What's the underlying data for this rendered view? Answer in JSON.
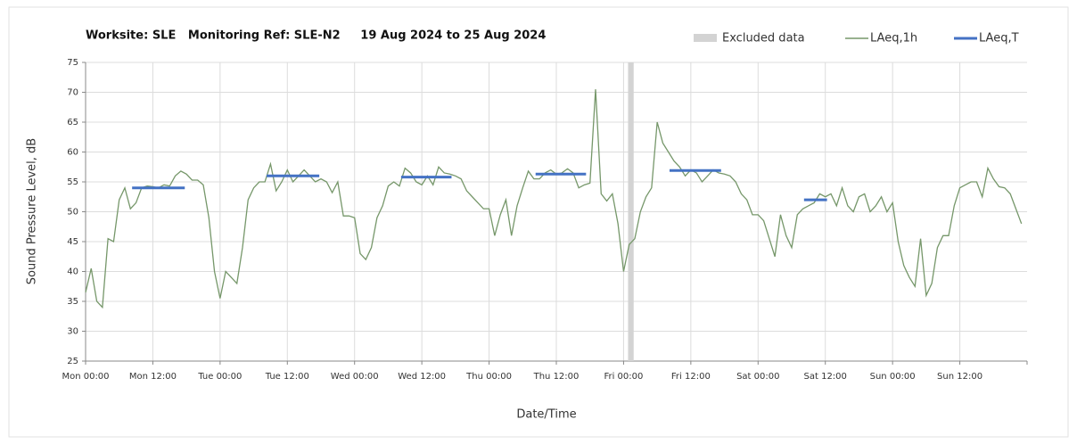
{
  "chart_data": {
    "type": "line",
    "title": "Worksite: SLE   Monitoring Ref: SLE-N2     19 Aug 2024 to 25 Aug 2024",
    "x_label": "Date/Time",
    "y_label": "Sound Pressure Level, dB",
    "xlim": [
      0,
      168
    ],
    "ylim": [
      25,
      75
    ],
    "yticks": [
      25,
      30,
      35,
      40,
      45,
      50,
      55,
      60,
      65,
      70,
      75
    ],
    "xticks": [
      {
        "value": 0,
        "label": "Mon 00:00"
      },
      {
        "value": 12,
        "label": "Mon 12:00"
      },
      {
        "value": 24,
        "label": "Tue 00:00"
      },
      {
        "value": 36,
        "label": "Tue 12:00"
      },
      {
        "value": 48,
        "label": "Wed 00:00"
      },
      {
        "value": 60,
        "label": "Wed 12:00"
      },
      {
        "value": 72,
        "label": "Thu 00:00"
      },
      {
        "value": 84,
        "label": "Thu 12:00"
      },
      {
        "value": 96,
        "label": "Fri 00:00"
      },
      {
        "value": 108,
        "label": "Fri 12:00"
      },
      {
        "value": 120,
        "label": "Sat 00:00"
      },
      {
        "value": 132,
        "label": "Sat 12:00"
      },
      {
        "value": 144,
        "label": "Sun 00:00"
      },
      {
        "value": 156,
        "label": "Sun 12:00"
      }
    ],
    "grid": true,
    "excluded": {
      "name": "Excluded data",
      "color": "#d3d3d3",
      "start": 96.8,
      "end": 97.8
    },
    "series": [
      {
        "name": "LAeq,1h",
        "color": "#76976a",
        "x": [
          0,
          1,
          2,
          3,
          4,
          5,
          6,
          7,
          8,
          9,
          10,
          11,
          12,
          13,
          14,
          15,
          16,
          17,
          18,
          19,
          20,
          21,
          22,
          23,
          24,
          25,
          26,
          27,
          28,
          29,
          30,
          31,
          32,
          33,
          34,
          35,
          36,
          37,
          38,
          39,
          40,
          41,
          42,
          43,
          44,
          45,
          46,
          47,
          48,
          49,
          50,
          51,
          52,
          53,
          54,
          55,
          56,
          57,
          58,
          59,
          60,
          61,
          62,
          63,
          64,
          65,
          66,
          67,
          68,
          69,
          70,
          71,
          72,
          73,
          74,
          75,
          76,
          77,
          78,
          79,
          80,
          81,
          82,
          83,
          84,
          85,
          86,
          87,
          88,
          89,
          90,
          91,
          92,
          93,
          94,
          95,
          96,
          97,
          98,
          99,
          100,
          101,
          102,
          103,
          104,
          105,
          106,
          107,
          108,
          109,
          110,
          111,
          112,
          113,
          114,
          115,
          116,
          117,
          118,
          119,
          120,
          121,
          122,
          123,
          124,
          125,
          126,
          127,
          128,
          129,
          130,
          131,
          132,
          133,
          134,
          135,
          136,
          137,
          138,
          139,
          140,
          141,
          142,
          143,
          144,
          145,
          146,
          147,
          148,
          149,
          150,
          151,
          152,
          153,
          154,
          155,
          156,
          157,
          158,
          159,
          160,
          161,
          162,
          163,
          164,
          165,
          166,
          167
        ],
        "values": [
          36.5,
          40.5,
          35,
          34,
          45.5,
          45,
          52,
          54,
          50.5,
          51.5,
          54,
          54.3,
          54.2,
          54,
          54.5,
          54.3,
          56,
          56.8,
          56.3,
          55.3,
          55.3,
          54.5,
          49,
          40,
          35.5,
          40,
          39,
          38,
          44,
          52,
          54,
          55,
          55,
          58,
          53.5,
          55,
          57,
          55,
          56,
          57,
          56,
          55,
          55.5,
          55,
          53.2,
          55,
          49.3,
          49.3,
          49,
          43,
          42,
          44,
          49,
          51,
          54.3,
          55,
          54.3,
          57.3,
          56.5,
          55,
          54.5,
          56,
          54.5,
          57.5,
          56.5,
          56.3,
          56,
          55.5,
          53.5,
          52.5,
          51.5,
          50.5,
          50.5,
          46,
          49.5,
          52,
          46,
          51,
          54,
          56.8,
          55.5,
          55.5,
          56.5,
          57,
          56.3,
          56.5,
          57.2,
          56.5,
          54,
          54.5,
          54.8,
          70.5,
          53,
          51.8,
          53,
          48,
          40,
          44.5,
          45.5,
          50,
          52.5,
          54,
          65,
          61.5,
          60,
          58.5,
          57.5,
          56,
          57,
          56.5,
          55,
          56,
          57,
          56.5,
          56.3,
          56,
          55,
          53,
          52,
          49.5,
          49.5,
          48.5,
          45.5,
          42.5,
          49.5,
          46,
          44,
          49.5,
          50.5,
          51,
          51.5,
          53,
          52.5,
          53,
          51,
          54,
          51,
          50,
          52.5,
          53,
          50,
          51,
          52.5,
          50,
          51.5,
          45,
          41,
          39,
          37.5,
          45.5,
          36,
          38,
          44,
          46,
          46,
          51,
          54,
          54.5,
          55,
          55,
          52.5,
          57.3,
          55.5,
          54.2,
          54,
          53,
          50.5,
          48
        ]
      },
      {
        "name": "LAeq,T",
        "color": "#4472c4",
        "type": "period",
        "start": [
          8.3,
          32.3,
          56.3,
          80.3,
          104.2,
          128.2
        ],
        "end": [
          17.7,
          41.7,
          65.3,
          89.3,
          113.4,
          132.3
        ],
        "values": [
          54,
          56,
          55.8,
          56.3,
          56.9,
          52
        ]
      }
    ]
  }
}
